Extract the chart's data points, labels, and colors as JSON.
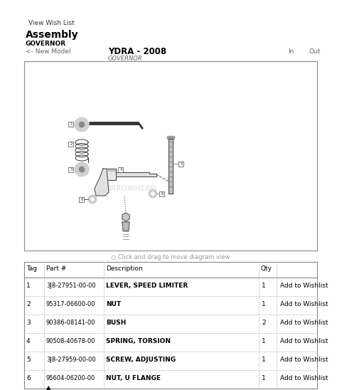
{
  "title": "Assembly",
  "subtitle": "GOVERNOR",
  "model_label": "<- New Model",
  "model_name": "YDRA - 2008",
  "model_sub": "GOVERNOR",
  "in_label": "In",
  "out_label": "Out",
  "view_wish_list": "View Wish List",
  "diagram_caption": "○ Click and drag to move diagram view",
  "bg_color": "#ffffff",
  "parts": [
    {
      "tag": "1",
      "part": "3J8-27951-00-00",
      "description": "LEVER, SPEED LIMITER",
      "qty": "1",
      "action": "Add to Wishlist"
    },
    {
      "tag": "2",
      "part": "95317-06600-00",
      "description": "NUT",
      "qty": "1",
      "action": "Add to Wishlist"
    },
    {
      "tag": "3",
      "part": "90386-08141-00",
      "description": "BUSH",
      "qty": "2",
      "action": "Add to Wishlist"
    },
    {
      "tag": "4",
      "part": "90508-40678-00",
      "description": "SPRING, TORSION",
      "qty": "1",
      "action": "Add to Wishlist"
    },
    {
      "tag": "5",
      "part": "3J8-27959-00-00",
      "description": "SCREW, ADJUSTING",
      "qty": "1",
      "action": "Add to Wishlist"
    },
    {
      "tag": "6",
      "part": "95604-06200-00",
      "description": "NUT, U FLANGE",
      "qty": "1",
      "action": "Add to Wishlist",
      "warning": true
    }
  ]
}
